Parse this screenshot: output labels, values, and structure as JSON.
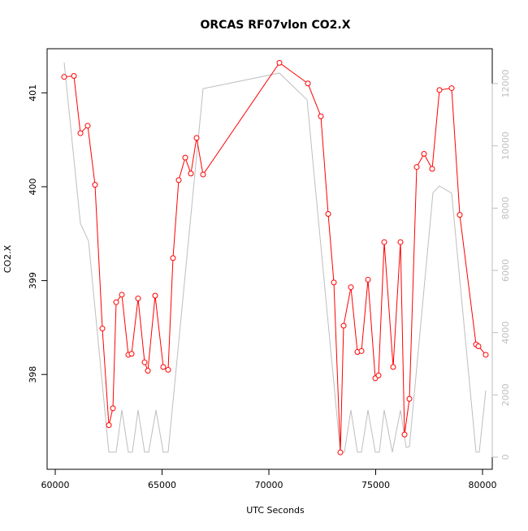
{
  "chart_data": {
    "type": "line",
    "title": "ORCAS RF07vlon CO2.X",
    "x_label": "UTC Seconds",
    "y_label": "CO2.X",
    "xlim": [
      59620,
      80456
    ],
    "xticks": [
      60000,
      65000,
      70000,
      75000,
      80000
    ],
    "ylim": [
      396.99,
      401.47
    ],
    "yticks": [
      398,
      399,
      400,
      401
    ],
    "y2lim": [
      -391,
      13122
    ],
    "y2ticks": [
      0,
      2000,
      4000,
      6000,
      8000,
      10000,
      12000
    ],
    "series": [
      {
        "color": "#bebebe",
        "axis": "y2",
        "marker": false,
        "x": [
          60418,
          61179,
          61559,
          62510,
          62852,
          63118,
          63422,
          63612,
          63878,
          64183,
          64373,
          64715,
          65057,
          65285,
          66920,
          70494,
          71787,
          73346,
          73536,
          73840,
          74144,
          74335,
          74639,
          74981,
          75171,
          75399,
          75779,
          76160,
          76426,
          76578,
          77681,
          77985,
          78555,
          79696,
          79848,
          80152
        ],
        "values": [
          12680,
          7510,
          6940,
          160,
          160,
          1510,
          160,
          160,
          1510,
          160,
          160,
          1510,
          160,
          160,
          11840,
          12340,
          11480,
          160,
          160,
          1510,
          160,
          160,
          1510,
          160,
          160,
          1510,
          160,
          1510,
          310,
          340,
          8500,
          8710,
          8480,
          160,
          160,
          2140
        ]
      },
      {
        "color": "#ff0000",
        "axis": "y",
        "marker": true,
        "x": [
          60418,
          60875,
          61179,
          61521,
          61863,
          62205,
          62510,
          62700,
          62852,
          63118,
          63422,
          63574,
          63878,
          64183,
          64335,
          64677,
          65057,
          65285,
          65513,
          65779,
          66084,
          66350,
          66616,
          66920,
          70494,
          71825,
          72433,
          72776,
          73042,
          73346,
          73498,
          73840,
          74144,
          74335,
          74639,
          74981,
          75133,
          75399,
          75817,
          76160,
          76350,
          76578,
          76920,
          77262,
          77643,
          77985,
          78555,
          78935,
          79696,
          79810,
          80152
        ],
        "values": [
          401.17,
          401.18,
          400.57,
          400.65,
          400.02,
          398.49,
          397.46,
          397.64,
          398.77,
          398.85,
          398.21,
          398.22,
          398.81,
          398.13,
          398.04,
          398.84,
          398.08,
          398.05,
          399.24,
          400.07,
          400.31,
          400.14,
          400.52,
          400.13,
          401.32,
          401.1,
          400.75,
          399.71,
          398.98,
          397.17,
          398.52,
          398.93,
          398.24,
          398.25,
          399.01,
          397.96,
          397.99,
          399.41,
          398.08,
          399.41,
          397.36,
          397.74,
          400.21,
          400.35,
          400.19,
          401.03,
          401.05,
          399.7,
          398.32,
          398.3,
          398.21
        ]
      }
    ]
  }
}
